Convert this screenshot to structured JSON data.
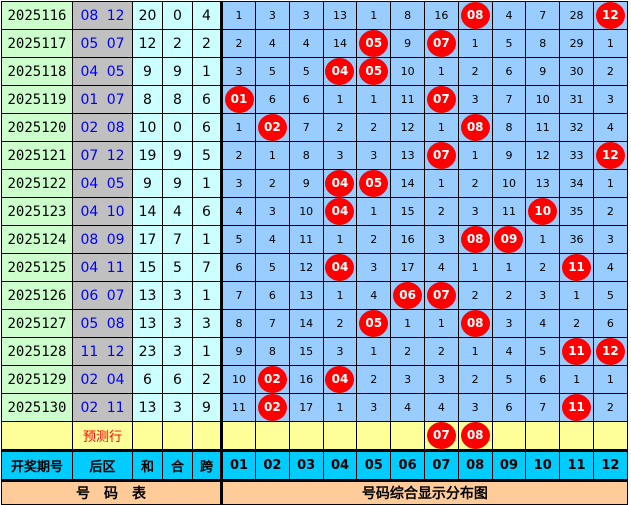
{
  "rows": [
    {
      "period": "2025116",
      "back": "08 12",
      "sum": "20",
      "mod": "0",
      "span": "4",
      "cells": [
        "1",
        "3",
        "3",
        "13",
        "1",
        "8",
        "16",
        "08",
        "4",
        "7",
        "28",
        "12"
      ]
    },
    {
      "period": "2025117",
      "back": "05 07",
      "sum": "12",
      "mod": "2",
      "span": "2",
      "cells": [
        "2",
        "4",
        "4",
        "14",
        "05",
        "9",
        "07",
        "1",
        "5",
        "8",
        "29",
        "1"
      ]
    },
    {
      "period": "2025118",
      "back": "04 05",
      "sum": "9",
      "mod": "9",
      "span": "1",
      "cells": [
        "3",
        "5",
        "5",
        "04",
        "05",
        "10",
        "1",
        "2",
        "6",
        "9",
        "30",
        "2"
      ]
    },
    {
      "period": "2025119",
      "back": "01 07",
      "sum": "8",
      "mod": "8",
      "span": "6",
      "cells": [
        "01",
        "6",
        "6",
        "1",
        "1",
        "11",
        "07",
        "3",
        "7",
        "10",
        "31",
        "3"
      ]
    },
    {
      "period": "2025120",
      "back": "02 08",
      "sum": "10",
      "mod": "0",
      "span": "6",
      "cells": [
        "1",
        "02",
        "7",
        "2",
        "2",
        "12",
        "1",
        "08",
        "8",
        "11",
        "32",
        "4"
      ]
    },
    {
      "period": "2025121",
      "back": "07 12",
      "sum": "19",
      "mod": "9",
      "span": "5",
      "cells": [
        "2",
        "1",
        "8",
        "3",
        "3",
        "13",
        "07",
        "1",
        "9",
        "12",
        "33",
        "12"
      ]
    },
    {
      "period": "2025122",
      "back": "04 05",
      "sum": "9",
      "mod": "9",
      "span": "1",
      "cells": [
        "3",
        "2",
        "9",
        "04",
        "05",
        "14",
        "1",
        "2",
        "10",
        "13",
        "34",
        "1"
      ]
    },
    {
      "period": "2025123",
      "back": "04 10",
      "sum": "14",
      "mod": "4",
      "span": "6",
      "cells": [
        "4",
        "3",
        "10",
        "04",
        "1",
        "15",
        "2",
        "3",
        "11",
        "10",
        "35",
        "2"
      ]
    },
    {
      "period": "2025124",
      "back": "08 09",
      "sum": "17",
      "mod": "7",
      "span": "1",
      "cells": [
        "5",
        "4",
        "11",
        "1",
        "2",
        "16",
        "3",
        "08",
        "09",
        "1",
        "36",
        "3"
      ]
    },
    {
      "period": "2025125",
      "back": "04 11",
      "sum": "15",
      "mod": "5",
      "span": "7",
      "cells": [
        "6",
        "5",
        "12",
        "04",
        "3",
        "17",
        "4",
        "1",
        "1",
        "2",
        "11",
        "4"
      ]
    },
    {
      "period": "2025126",
      "back": "06 07",
      "sum": "13",
      "mod": "3",
      "span": "1",
      "cells": [
        "7",
        "6",
        "13",
        "1",
        "4",
        "06",
        "07",
        "2",
        "2",
        "3",
        "1",
        "5"
      ]
    },
    {
      "period": "2025127",
      "back": "05 08",
      "sum": "13",
      "mod": "3",
      "span": "3",
      "cells": [
        "8",
        "7",
        "14",
        "2",
        "05",
        "1",
        "1",
        "08",
        "3",
        "4",
        "2",
        "6"
      ]
    },
    {
      "period": "2025128",
      "back": "11 12",
      "sum": "23",
      "mod": "3",
      "span": "1",
      "cells": [
        "9",
        "8",
        "15",
        "3",
        "1",
        "2",
        "2",
        "1",
        "4",
        "5",
        "11",
        "12"
      ]
    },
    {
      "period": "2025129",
      "back": "02 04",
      "sum": "6",
      "mod": "6",
      "span": "2",
      "cells": [
        "10",
        "02",
        "16",
        "04",
        "2",
        "3",
        "3",
        "2",
        "5",
        "6",
        "1",
        "1"
      ]
    },
    {
      "period": "2025130",
      "back": "02 11",
      "sum": "13",
      "mod": "3",
      "span": "9",
      "cells": [
        "11",
        "02",
        "17",
        "1",
        "3",
        "4",
        "4",
        "3",
        "6",
        "7",
        "11",
        "2"
      ]
    }
  ],
  "prediction": {
    "label": "预测行",
    "cells": [
      "",
      "",
      "",
      "",
      "",
      "",
      "07",
      "08",
      "",
      "",
      "",
      ""
    ]
  },
  "header": {
    "period": "开奖期号",
    "back": "后区",
    "sum": "和",
    "mod": "合",
    "span": "跨",
    "numbers": [
      "01",
      "02",
      "03",
      "04",
      "05",
      "06",
      "07",
      "08",
      "09",
      "10",
      "11",
      "12"
    ]
  },
  "footer": {
    "left": "号　码　表",
    "right": "号码综合显示分布图"
  },
  "colors": {
    "ball": "#ff0000",
    "grid": "#99ccff",
    "period_bg": "#ccffcc",
    "back_text": "#0000ff",
    "header_bg": "#00ccff",
    "footer_bg": "#ffcc99",
    "prediction_bg": "#ffff99"
  }
}
